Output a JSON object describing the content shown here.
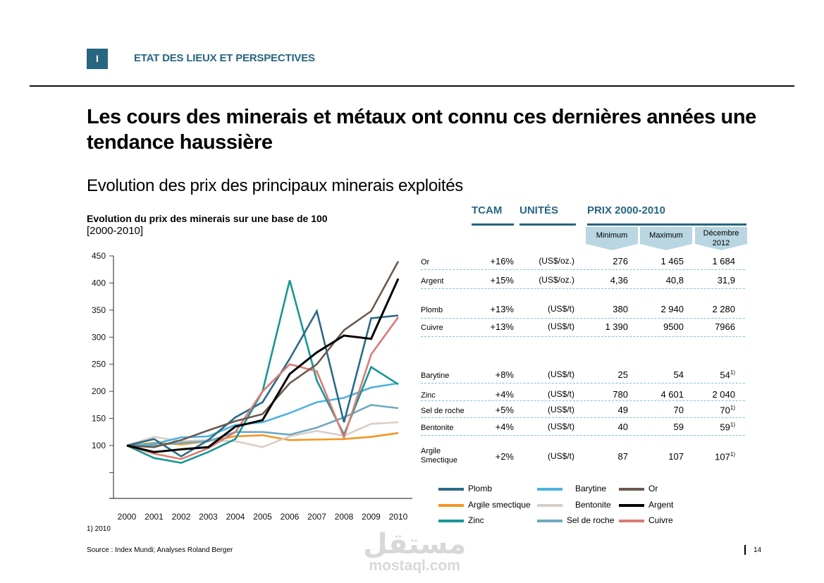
{
  "header": {
    "section_number": "I",
    "section_title": "ETAT DES LIEUX ET PERSPECTIVES"
  },
  "title": "Les cours des minerais et métaux ont connu ces dernières années une tendance haussière",
  "subtitle": "Evolution des prix des principaux minerais exploités",
  "table": {
    "headers": {
      "tcam": "TCAM",
      "units": "UNITÉS",
      "prices": "PRIX 2000-2010"
    },
    "price_subheaders": [
      "Minimum",
      "Maximum",
      "Décembre 2012"
    ],
    "rows": [
      {
        "name": "Or",
        "tcam": "+16%",
        "unit": "(US$/oz.)",
        "min": "276",
        "max": "1 465",
        "dec": "1 684",
        "note": ""
      },
      {
        "name": "Argent",
        "tcam": "+15%",
        "unit": "(US$/oz.)",
        "min": "4,36",
        "max": "40,8",
        "dec": "31,9",
        "note": ""
      },
      {
        "name": "Plomb",
        "tcam": "+13%",
        "unit": "(US$/t)",
        "min": "380",
        "max": "2 940",
        "dec": "2 280",
        "note": ""
      },
      {
        "name": "Cuivre",
        "tcam": "+13%",
        "unit": "(US$/t)",
        "min": "1 390",
        "max": "9500",
        "dec": "7966",
        "note": ""
      },
      {
        "name": "Barytine",
        "tcam": "+8%",
        "unit": "(US$/t)",
        "min": "25",
        "max": "54",
        "dec": "54",
        "note": "1)"
      },
      {
        "name": "Zinc",
        "tcam": "+4%",
        "unit": "(US$/t)",
        "min": "780",
        "max": "4 601",
        "dec": "2 040",
        "note": ""
      },
      {
        "name": "Sel de roche",
        "tcam": "+5%",
        "unit": "(US$/t)",
        "min": "49",
        "max": "70",
        "dec": "70",
        "note": "1)"
      },
      {
        "name": "Bentonite",
        "tcam": "+4%",
        "unit": "(US$/t)",
        "min": "40",
        "max": "59",
        "dec": "59",
        "note": "1)"
      },
      {
        "name": "Argile Smectique",
        "tcam": "+2%",
        "unit": "(US$/t)",
        "min": "87",
        "max": "107",
        "dec": "107",
        "note": "1)"
      }
    ]
  },
  "colors": {
    "accent": "#276680",
    "header_arrow": "#b9d6e2",
    "dashed_rule": "#7fbfdc"
  },
  "chart_data": {
    "type": "line",
    "title": "Evolution du prix des minerais sur une base de 100",
    "subtitle": "[2000-2010]",
    "xlabel": "",
    "ylabel": "",
    "x": [
      "2000",
      "2001",
      "2002",
      "2003",
      "2004",
      "2005",
      "2006",
      "2007",
      "2008",
      "2009",
      "2010"
    ],
    "yticks": [
      "",
      "100",
      "150",
      "200",
      "250",
      "300",
      "350",
      "400",
      "450"
    ],
    "ytick_values": [
      50,
      100,
      150,
      200,
      250,
      300,
      350,
      400,
      450
    ],
    "ylim": [
      0,
      450
    ],
    "grid": false,
    "legend_position": "bottom-right",
    "series": [
      {
        "name": "Plomb",
        "color": "#2b6a86",
        "values": [
          100,
          112,
          80,
          110,
          152,
          180,
          260,
          348,
          143,
          335,
          340
        ]
      },
      {
        "name": "Barytine",
        "color": "#4fb2e0",
        "values": [
          100,
          103,
          115,
          117,
          138,
          143,
          160,
          180,
          188,
          207,
          215
        ]
      },
      {
        "name": "Or",
        "color": "#6b5a4e",
        "values": [
          100,
          97,
          110,
          128,
          145,
          158,
          215,
          250,
          313,
          348,
          440
        ]
      },
      {
        "name": "Argile smectique",
        "color": "#f5961f",
        "values": [
          100,
          105,
          102,
          108,
          117,
          119,
          110,
          111,
          112,
          116,
          123
        ]
      },
      {
        "name": "Bentonite",
        "color": "#d9cec6",
        "values": [
          100,
          116,
          108,
          110,
          108,
          97,
          117,
          127,
          118,
          140,
          143
        ]
      },
      {
        "name": "Argent",
        "color": "#000000",
        "values": [
          100,
          88,
          93,
          97,
          135,
          147,
          232,
          272,
          303,
          297,
          408
        ]
      },
      {
        "name": "Zinc",
        "color": "#1a9696",
        "values": [
          100,
          77,
          68,
          88,
          112,
          200,
          405,
          220,
          120,
          245,
          213
        ]
      },
      {
        "name": "Sel de roche",
        "color": "#6fa9c0",
        "values": [
          100,
          100,
          105,
          108,
          125,
          125,
          120,
          133,
          152,
          175,
          169
        ]
      },
      {
        "name": "Cuivre",
        "color": "#d97c73",
        "values": [
          100,
          85,
          75,
          95,
          125,
          200,
          250,
          237,
          115,
          268,
          337
        ]
      }
    ]
  },
  "footnote": "1) 2010",
  "source": "Source : Index Mundi; Analyses Roland Berger",
  "page_number": "14",
  "watermark": {
    "arabic": "مستقل",
    "latin": "mostaql.com"
  }
}
